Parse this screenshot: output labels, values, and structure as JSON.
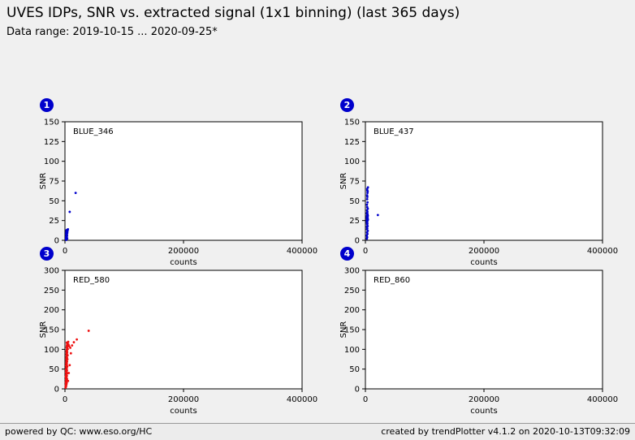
{
  "header": {
    "title": "UVES IDPs, SNR vs. extracted signal (1x1 binning) (last 365 days)",
    "subtitle": "Data range: 2019-10-15 ... 2020-09-25*"
  },
  "footer": {
    "left": "powered by QC: www.eso.org/HC",
    "right": "created by trendPlotter v4.1.2 on 2020-10-13T09:32:09"
  },
  "colors": {
    "background": "#f0f0f0",
    "badge": "#0000cc",
    "blue_points": "#0000cd",
    "red_points": "#ee1111",
    "plot_background": "#ffffff",
    "plot_border": "#000000"
  },
  "chart_data": [
    {
      "type": "scatter",
      "badge": "1",
      "label": "BLUE_346",
      "xlabel": "counts",
      "ylabel": "SNR",
      "xlim": [
        0,
        400000
      ],
      "ylim": [
        0,
        150
      ],
      "xticks": [
        0,
        200000,
        400000
      ],
      "yticks": [
        0,
        25,
        50,
        75,
        100,
        125,
        150
      ],
      "point_color": "#0000cd",
      "points": [
        [
          2000,
          0.5
        ],
        [
          2200,
          1
        ],
        [
          2500,
          1.5
        ],
        [
          1800,
          2
        ],
        [
          3000,
          2.5
        ],
        [
          2100,
          3
        ],
        [
          2700,
          3.5
        ],
        [
          3300,
          4
        ],
        [
          1900,
          4.5
        ],
        [
          2400,
          5
        ],
        [
          2900,
          5.5
        ],
        [
          3600,
          6
        ],
        [
          2300,
          6.5
        ],
        [
          2600,
          7
        ],
        [
          3100,
          7.5
        ],
        [
          2000,
          8
        ],
        [
          3500,
          8.5
        ],
        [
          2800,
          9
        ],
        [
          4000,
          9.5
        ],
        [
          2200,
          10
        ],
        [
          2600,
          10.5
        ],
        [
          3200,
          11
        ],
        [
          4500,
          12
        ],
        [
          2400,
          12.5
        ],
        [
          3000,
          13
        ],
        [
          5000,
          14
        ],
        [
          2100,
          1
        ],
        [
          3800,
          2
        ],
        [
          8000,
          36
        ],
        [
          18000,
          60
        ]
      ]
    },
    {
      "type": "scatter",
      "badge": "2",
      "label": "BLUE_437",
      "xlabel": "counts",
      "ylabel": "SNR",
      "xlim": [
        0,
        400000
      ],
      "ylim": [
        0,
        150
      ],
      "xticks": [
        0,
        200000,
        400000
      ],
      "yticks": [
        0,
        25,
        50,
        75,
        100,
        125,
        150
      ],
      "point_color": "#0000cd",
      "points": [
        [
          2500,
          2
        ],
        [
          3000,
          4
        ],
        [
          2200,
          6
        ],
        [
          3500,
          8
        ],
        [
          2800,
          10
        ],
        [
          4000,
          12
        ],
        [
          2600,
          14
        ],
        [
          3200,
          15
        ],
        [
          2400,
          17
        ],
        [
          3800,
          18
        ],
        [
          2900,
          20
        ],
        [
          3400,
          21
        ],
        [
          2500,
          22
        ],
        [
          3100,
          23
        ],
        [
          2700,
          24
        ],
        [
          3600,
          25
        ],
        [
          2300,
          25
        ],
        [
          3000,
          26
        ],
        [
          4200,
          26
        ],
        [
          2800,
          27
        ],
        [
          3300,
          27
        ],
        [
          2600,
          28
        ],
        [
          3900,
          28
        ],
        [
          3100,
          29
        ],
        [
          2400,
          29
        ],
        [
          3500,
          30
        ],
        [
          2900,
          30
        ],
        [
          4100,
          31
        ],
        [
          2700,
          31
        ],
        [
          3200,
          32
        ],
        [
          3700,
          33
        ],
        [
          2500,
          34
        ],
        [
          3000,
          35
        ],
        [
          3400,
          36
        ],
        [
          2800,
          38
        ],
        [
          4000,
          40
        ],
        [
          3100,
          42
        ],
        [
          2600,
          45
        ],
        [
          3600,
          48
        ],
        [
          3000,
          52
        ],
        [
          3300,
          55
        ],
        [
          2900,
          57
        ],
        [
          3500,
          60
        ],
        [
          3800,
          62
        ],
        [
          3200,
          63
        ],
        [
          3000,
          65
        ],
        [
          4300,
          67
        ],
        [
          21000,
          32
        ]
      ]
    },
    {
      "type": "scatter",
      "badge": "3",
      "label": "RED_580",
      "xlabel": "counts",
      "ylabel": "SNR",
      "xlim": [
        0,
        400000
      ],
      "ylim": [
        0,
        300
      ],
      "xticks": [
        0,
        200000,
        400000
      ],
      "yticks": [
        0,
        50,
        100,
        150,
        200,
        250,
        300
      ],
      "point_color": "#ee1111",
      "points": [
        [
          1000,
          3
        ],
        [
          1500,
          5
        ],
        [
          2000,
          7
        ],
        [
          1200,
          9
        ],
        [
          2500,
          11
        ],
        [
          1800,
          13
        ],
        [
          3000,
          15
        ],
        [
          1400,
          17
        ],
        [
          2200,
          19
        ],
        [
          2800,
          21
        ],
        [
          1600,
          23
        ],
        [
          3500,
          25
        ],
        [
          2000,
          27
        ],
        [
          2600,
          29
        ],
        [
          1300,
          31
        ],
        [
          3200,
          33
        ],
        [
          1900,
          35
        ],
        [
          2400,
          37
        ],
        [
          3800,
          39
        ],
        [
          1700,
          41
        ],
        [
          2900,
          43
        ],
        [
          2100,
          45
        ],
        [
          3400,
          47
        ],
        [
          1500,
          49
        ],
        [
          2700,
          51
        ],
        [
          3100,
          53
        ],
        [
          2300,
          55
        ],
        [
          4000,
          57
        ],
        [
          1800,
          59
        ],
        [
          2600,
          61
        ],
        [
          3300,
          63
        ],
        [
          2000,
          65
        ],
        [
          2900,
          67
        ],
        [
          3600,
          69
        ],
        [
          2400,
          71
        ],
        [
          3000,
          73
        ],
        [
          4200,
          75
        ],
        [
          2200,
          77
        ],
        [
          3500,
          79
        ],
        [
          2700,
          81
        ],
        [
          3100,
          83
        ],
        [
          4500,
          85
        ],
        [
          2500,
          87
        ],
        [
          3300,
          89
        ],
        [
          2900,
          91
        ],
        [
          3800,
          93
        ],
        [
          2600,
          95
        ],
        [
          3400,
          97
        ],
        [
          3000,
          99
        ],
        [
          4800,
          101
        ],
        [
          3600,
          103
        ],
        [
          2800,
          105
        ],
        [
          4000,
          107
        ],
        [
          3200,
          109
        ],
        [
          5000,
          111
        ],
        [
          3700,
          113
        ],
        [
          4300,
          115
        ],
        [
          3100,
          117
        ],
        [
          5500,
          119
        ],
        [
          6000,
          112
        ],
        [
          7000,
          108
        ],
        [
          9000,
          104
        ],
        [
          12000,
          110
        ],
        [
          15000,
          118
        ],
        [
          20000,
          125
        ],
        [
          40000,
          147
        ],
        [
          8000,
          60
        ],
        [
          10000,
          90
        ],
        [
          6500,
          40
        ],
        [
          5200,
          20
        ]
      ]
    },
    {
      "type": "scatter",
      "badge": "4",
      "label": "RED_860",
      "xlabel": "counts",
      "ylabel": "SNR",
      "xlim": [
        0,
        400000
      ],
      "ylim": [
        0,
        300
      ],
      "xticks": [
        0,
        200000,
        400000
      ],
      "yticks": [
        0,
        50,
        100,
        150,
        200,
        250,
        300
      ],
      "point_color": "#ee1111",
      "points": []
    }
  ]
}
